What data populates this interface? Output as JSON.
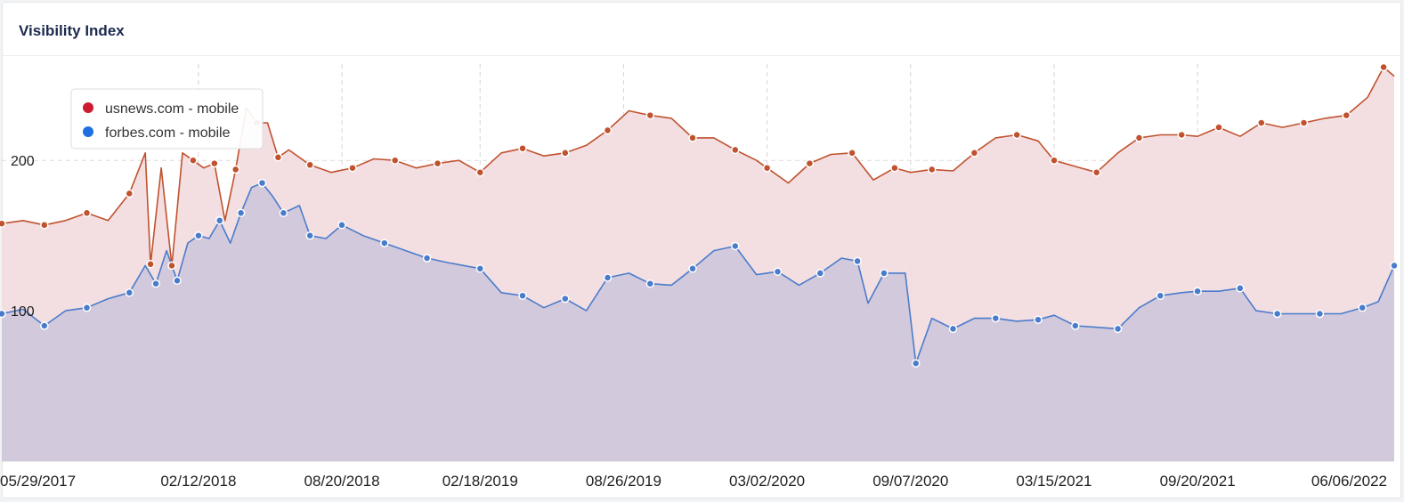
{
  "widget": {
    "title": "Visibility Index"
  },
  "chart_data": {
    "type": "area",
    "title": "Visibility Index",
    "xlabel": "",
    "ylabel": "",
    "x_start": "05/29/2017",
    "x_end": "06/06/2022",
    "x_ticks": [
      "05/29/2017",
      "02/12/2018",
      "08/20/2018",
      "02/18/2019",
      "08/26/2019",
      "03/02/2020",
      "09/07/2020",
      "03/15/2021",
      "09/20/2021",
      "06/06/2022"
    ],
    "y_ticks": [
      100,
      200
    ],
    "ylim": [
      0,
      270
    ],
    "grid": true,
    "legend_position": "top-left",
    "series": [
      {
        "name": "usnews.com - mobile",
        "color": "#c0522e",
        "legend_color": "#cc1a30",
        "fill": "#f2dcdf",
        "points": [
          [
            "05/29/2017",
            158
          ],
          [
            "06/26/2017",
            160
          ],
          [
            "07/24/2017",
            157
          ],
          [
            "08/21/2017",
            160
          ],
          [
            "09/18/2017",
            165
          ],
          [
            "10/16/2017",
            160
          ],
          [
            "11/13/2017",
            178
          ],
          [
            "12/04/2017",
            205
          ],
          [
            "12/11/2017",
            131
          ],
          [
            "12/25/2017",
            195
          ],
          [
            "01/08/2018",
            130
          ],
          [
            "01/22/2018",
            205
          ],
          [
            "02/05/2018",
            200
          ],
          [
            "02/19/2018",
            195
          ],
          [
            "03/05/2018",
            198
          ],
          [
            "03/19/2018",
            160
          ],
          [
            "04/02/2018",
            194
          ],
          [
            "04/16/2018",
            235
          ],
          [
            "04/30/2018",
            225
          ],
          [
            "05/14/2018",
            225
          ],
          [
            "05/28/2018",
            202
          ],
          [
            "06/11/2018",
            207
          ],
          [
            "07/09/2018",
            197
          ],
          [
            "08/06/2018",
            192
          ],
          [
            "09/03/2018",
            195
          ],
          [
            "10/01/2018",
            201
          ],
          [
            "10/29/2018",
            200
          ],
          [
            "11/26/2018",
            195
          ],
          [
            "12/24/2018",
            198
          ],
          [
            "01/21/2019",
            200
          ],
          [
            "02/18/2019",
            192
          ],
          [
            "03/18/2019",
            205
          ],
          [
            "04/15/2019",
            208
          ],
          [
            "05/13/2019",
            203
          ],
          [
            "06/10/2019",
            205
          ],
          [
            "07/08/2019",
            210
          ],
          [
            "08/05/2019",
            220
          ],
          [
            "09/02/2019",
            233
          ],
          [
            "09/30/2019",
            230
          ],
          [
            "10/28/2019",
            228
          ],
          [
            "11/25/2019",
            215
          ],
          [
            "12/23/2019",
            215
          ],
          [
            "01/20/2020",
            207
          ],
          [
            "02/17/2020",
            200
          ],
          [
            "03/02/2020",
            195
          ],
          [
            "03/30/2020",
            185
          ],
          [
            "04/27/2020",
            198
          ],
          [
            "05/25/2020",
            204
          ],
          [
            "06/22/2020",
            205
          ],
          [
            "07/20/2020",
            187
          ],
          [
            "08/17/2020",
            195
          ],
          [
            "09/07/2020",
            192
          ],
          [
            "10/05/2020",
            194
          ],
          [
            "11/02/2020",
            193
          ],
          [
            "11/30/2020",
            205
          ],
          [
            "12/28/2020",
            215
          ],
          [
            "01/25/2021",
            217
          ],
          [
            "02/22/2021",
            213
          ],
          [
            "03/15/2021",
            200
          ],
          [
            "04/12/2021",
            196
          ],
          [
            "05/10/2021",
            192
          ],
          [
            "06/07/2021",
            205
          ],
          [
            "07/05/2021",
            215
          ],
          [
            "08/02/2021",
            217
          ],
          [
            "08/30/2021",
            217
          ],
          [
            "09/20/2021",
            216
          ],
          [
            "10/18/2021",
            222
          ],
          [
            "11/15/2021",
            216
          ],
          [
            "12/13/2021",
            225
          ],
          [
            "01/10/2022",
            222
          ],
          [
            "02/07/2022",
            225
          ],
          [
            "03/07/2022",
            228
          ],
          [
            "04/04/2022",
            230
          ],
          [
            "05/02/2022",
            242
          ],
          [
            "05/23/2022",
            262
          ],
          [
            "06/06/2022",
            256
          ]
        ]
      },
      {
        "name": "forbes.com - mobile",
        "color": "#4a7ccc",
        "legend_color": "#1f6fe0",
        "fill": "#cdc6da",
        "points": [
          [
            "05/29/2017",
            98
          ],
          [
            "06/26/2017",
            101
          ],
          [
            "07/24/2017",
            90
          ],
          [
            "08/21/2017",
            100
          ],
          [
            "09/18/2017",
            102
          ],
          [
            "10/16/2017",
            108
          ],
          [
            "11/13/2017",
            112
          ],
          [
            "12/04/2017",
            130
          ],
          [
            "12/18/2017",
            118
          ],
          [
            "01/01/2018",
            140
          ],
          [
            "01/15/2018",
            120
          ],
          [
            "01/29/2018",
            145
          ],
          [
            "02/12/2018",
            150
          ],
          [
            "02/26/2018",
            148
          ],
          [
            "03/12/2018",
            160
          ],
          [
            "03/26/2018",
            145
          ],
          [
            "04/09/2018",
            165
          ],
          [
            "04/23/2018",
            182
          ],
          [
            "05/07/2018",
            185
          ],
          [
            "05/21/2018",
            176
          ],
          [
            "06/04/2018",
            165
          ],
          [
            "06/25/2018",
            170
          ],
          [
            "07/09/2018",
            150
          ],
          [
            "07/30/2018",
            148
          ],
          [
            "08/20/2018",
            157
          ],
          [
            "09/17/2018",
            150
          ],
          [
            "10/15/2018",
            145
          ],
          [
            "11/12/2018",
            140
          ],
          [
            "12/10/2018",
            135
          ],
          [
            "01/07/2019",
            132
          ],
          [
            "02/18/2019",
            128
          ],
          [
            "03/18/2019",
            112
          ],
          [
            "04/15/2019",
            110
          ],
          [
            "05/13/2019",
            102
          ],
          [
            "06/10/2019",
            108
          ],
          [
            "07/08/2019",
            100
          ],
          [
            "08/05/2019",
            122
          ],
          [
            "09/02/2019",
            125
          ],
          [
            "09/30/2019",
            118
          ],
          [
            "10/28/2019",
            117
          ],
          [
            "11/25/2019",
            128
          ],
          [
            "12/23/2019",
            140
          ],
          [
            "01/20/2020",
            143
          ],
          [
            "02/17/2020",
            124
          ],
          [
            "03/16/2020",
            126
          ],
          [
            "04/13/2020",
            117
          ],
          [
            "05/11/2020",
            125
          ],
          [
            "06/08/2020",
            135
          ],
          [
            "06/29/2020",
            133
          ],
          [
            "07/13/2020",
            105
          ],
          [
            "08/03/2020",
            125
          ],
          [
            "08/31/2020",
            125
          ],
          [
            "09/14/2020",
            65
          ],
          [
            "10/05/2020",
            95
          ],
          [
            "11/02/2020",
            88
          ],
          [
            "11/30/2020",
            95
          ],
          [
            "12/28/2020",
            95
          ],
          [
            "01/25/2021",
            93
          ],
          [
            "02/22/2021",
            94
          ],
          [
            "03/15/2021",
            97
          ],
          [
            "04/12/2021",
            90
          ],
          [
            "05/10/2021",
            89
          ],
          [
            "06/07/2021",
            88
          ],
          [
            "07/05/2021",
            102
          ],
          [
            "08/02/2021",
            110
          ],
          [
            "08/30/2021",
            112
          ],
          [
            "09/20/2021",
            113
          ],
          [
            "10/18/2021",
            113
          ],
          [
            "11/15/2021",
            115
          ],
          [
            "12/06/2021",
            100
          ],
          [
            "01/03/2022",
            98
          ],
          [
            "01/31/2022",
            98
          ],
          [
            "02/28/2022",
            98
          ],
          [
            "03/28/2022",
            98
          ],
          [
            "04/25/2022",
            102
          ],
          [
            "05/16/2022",
            106
          ],
          [
            "06/06/2022",
            130
          ]
        ]
      }
    ]
  }
}
